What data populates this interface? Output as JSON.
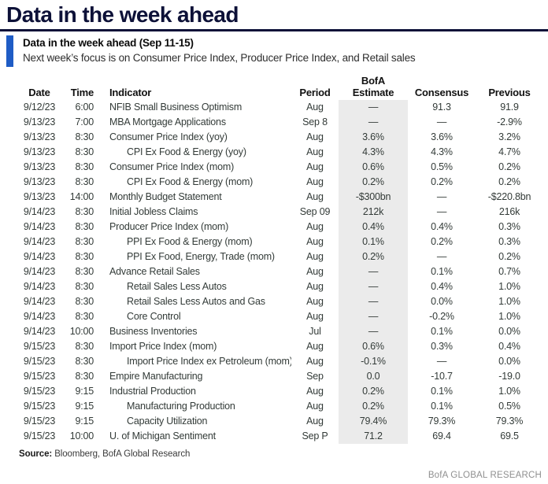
{
  "page_title": "Data in the week ahead",
  "callout": {
    "heading": "Data in the week ahead (Sep 11-15)",
    "subheading": "Next week’s focus is on Consumer Price Index, Producer Price Index, and Retail sales"
  },
  "colors": {
    "title_navy": "#0d1138",
    "accent_blue": "#1f5cc5",
    "estimate_column_bg": "#ebebeb",
    "footer_gray": "#8f8f8f"
  },
  "table": {
    "headers": {
      "date": "Date",
      "time": "Time",
      "indicator": "Indicator",
      "period": "Period",
      "estimate_line1": "BofA",
      "estimate_line2": "Estimate",
      "consensus": "Consensus",
      "previous": "Previous"
    },
    "rows": [
      {
        "date": "9/12/23",
        "time": "6:00",
        "indicator": "NFIB Small Business Optimism",
        "indent": false,
        "period": "Aug",
        "estimate": "—",
        "consensus": "91.3",
        "previous": "91.9"
      },
      {
        "date": "9/13/23",
        "time": "7:00",
        "indicator": "MBA Mortgage Applications",
        "indent": false,
        "period": "Sep 8",
        "estimate": "—",
        "consensus": "—",
        "previous": "-2.9%"
      },
      {
        "date": "9/13/23",
        "time": "8:30",
        "indicator": "Consumer Price Index (yoy)",
        "indent": false,
        "period": "Aug",
        "estimate": "3.6%",
        "consensus": "3.6%",
        "previous": "3.2%"
      },
      {
        "date": "9/13/23",
        "time": "8:30",
        "indicator": "CPI Ex Food & Energy (yoy)",
        "indent": true,
        "period": "Aug",
        "estimate": "4.3%",
        "consensus": "4.3%",
        "previous": "4.7%"
      },
      {
        "date": "9/13/23",
        "time": "8:30",
        "indicator": "Consumer Price Index (mom)",
        "indent": false,
        "period": "Aug",
        "estimate": "0.6%",
        "consensus": "0.5%",
        "previous": "0.2%"
      },
      {
        "date": "9/13/23",
        "time": "8:30",
        "indicator": "CPI Ex Food & Energy (mom)",
        "indent": true,
        "period": "Aug",
        "estimate": "0.2%",
        "consensus": "0.2%",
        "previous": "0.2%"
      },
      {
        "date": "9/13/23",
        "time": "14:00",
        "indicator": "Monthly Budget Statement",
        "indent": false,
        "period": "Aug",
        "estimate": "-$300bn",
        "consensus": "—",
        "previous": "-$220.8bn"
      },
      {
        "date": "9/14/23",
        "time": "8:30",
        "indicator": "Initial Jobless Claims",
        "indent": false,
        "period": "Sep 09",
        "estimate": "212k",
        "consensus": "—",
        "previous": "216k"
      },
      {
        "date": "9/14/23",
        "time": "8:30",
        "indicator": "Producer Price Index (mom)",
        "indent": false,
        "period": "Aug",
        "estimate": "0.4%",
        "consensus": "0.4%",
        "previous": "0.3%"
      },
      {
        "date": "9/14/23",
        "time": "8:30",
        "indicator": "PPI Ex Food & Energy (mom)",
        "indent": true,
        "period": "Aug",
        "estimate": "0.1%",
        "consensus": "0.2%",
        "previous": "0.3%"
      },
      {
        "date": "9/14/23",
        "time": "8:30",
        "indicator": "PPI Ex Food, Energy, Trade (mom)",
        "indent": true,
        "period": "Aug",
        "estimate": "0.2%",
        "consensus": "—",
        "previous": "0.2%"
      },
      {
        "date": "9/14/23",
        "time": "8:30",
        "indicator": "Advance Retail Sales",
        "indent": false,
        "period": "Aug",
        "estimate": "—",
        "consensus": "0.1%",
        "previous": "0.7%"
      },
      {
        "date": "9/14/23",
        "time": "8:30",
        "indicator": "Retail Sales Less Autos",
        "indent": true,
        "period": "Aug",
        "estimate": "—",
        "consensus": "0.4%",
        "previous": "1.0%"
      },
      {
        "date": "9/14/23",
        "time": "8:30",
        "indicator": "Retail Sales Less Autos and Gas",
        "indent": true,
        "period": "Aug",
        "estimate": "—",
        "consensus": "0.0%",
        "previous": "1.0%"
      },
      {
        "date": "9/14/23",
        "time": "8:30",
        "indicator": "Core Control",
        "indent": true,
        "period": "Aug",
        "estimate": "—",
        "consensus": "-0.2%",
        "previous": "1.0%"
      },
      {
        "date": "9/14/23",
        "time": "10:00",
        "indicator": "Business Inventories",
        "indent": false,
        "period": "Jul",
        "estimate": "—",
        "consensus": "0.1%",
        "previous": "0.0%"
      },
      {
        "date": "9/15/23",
        "time": "8:30",
        "indicator": "Import Price Index (mom)",
        "indent": false,
        "period": "Aug",
        "estimate": "0.6%",
        "consensus": "0.3%",
        "previous": "0.4%"
      },
      {
        "date": "9/15/23",
        "time": "8:30",
        "indicator": "Import Price Index ex Petroleum (mom)",
        "indent": true,
        "period": "Aug",
        "estimate": "-0.1%",
        "consensus": "—",
        "previous": "0.0%"
      },
      {
        "date": "9/15/23",
        "time": "8:30",
        "indicator": "Empire Manufacturing",
        "indent": false,
        "period": "Sep",
        "estimate": "0.0",
        "consensus": "-10.7",
        "previous": "-19.0"
      },
      {
        "date": "9/15/23",
        "time": "9:15",
        "indicator": "Industrial Production",
        "indent": false,
        "period": "Aug",
        "estimate": "0.2%",
        "consensus": "0.1%",
        "previous": "1.0%"
      },
      {
        "date": "9/15/23",
        "time": "9:15",
        "indicator": "Manufacturing Production",
        "indent": true,
        "period": "Aug",
        "estimate": "0.2%",
        "consensus": "0.1%",
        "previous": "0.5%"
      },
      {
        "date": "9/15/23",
        "time": "9:15",
        "indicator": "Capacity Utilization",
        "indent": true,
        "period": "Aug",
        "estimate": "79.4%",
        "consensus": "79.3%",
        "previous": "79.3%"
      },
      {
        "date": "9/15/23",
        "time": "10:00",
        "indicator": "U. of Michigan Sentiment",
        "indent": false,
        "period": "Sep P",
        "estimate": "71.2",
        "consensus": "69.4",
        "previous": "69.5"
      }
    ]
  },
  "source": {
    "label": "Source:",
    "text": " Bloomberg, BofA Global Research"
  },
  "footer": {
    "brand": "BofA GLOBAL RESEARCH"
  }
}
